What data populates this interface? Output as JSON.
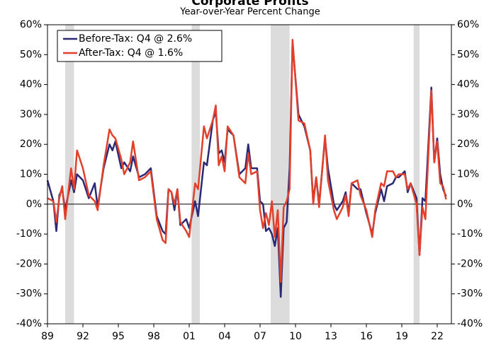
{
  "chart_data": {
    "type": "line",
    "title": "Corporate Profits",
    "subtitle": "Year-over-Year Percent Change",
    "x": [
      1989.0,
      1989.5,
      1989.75,
      1990.0,
      1990.25,
      1990.5,
      1991.0,
      1991.25,
      1991.5,
      1992.0,
      1992.5,
      1993.0,
      1993.25,
      1993.75,
      1994.25,
      1994.5,
      1994.75,
      1995.25,
      1995.5,
      1996.0,
      1996.25,
      1996.75,
      1997.25,
      1997.75,
      1998.25,
      1998.75,
      1999.0,
      1999.25,
      1999.5,
      1999.75,
      2000.0,
      2000.25,
      2000.75,
      2001.0,
      2001.5,
      2001.75,
      2002.25,
      2002.5,
      2003.0,
      2003.25,
      2003.5,
      2003.75,
      2004.0,
      2004.25,
      2004.75,
      2005.25,
      2005.75,
      2006.0,
      2006.25,
      2006.75,
      2007.0,
      2007.25,
      2007.5,
      2007.75,
      2008.0,
      2008.25,
      2008.5,
      2008.75,
      2009.0,
      2009.25,
      2009.5,
      2009.75,
      2010.25,
      2010.75,
      2011.25,
      2011.5,
      2011.75,
      2012.0,
      2012.5,
      2012.75,
      2013.25,
      2013.5,
      2014.0,
      2014.25,
      2014.5,
      2014.75,
      2015.25,
      2015.5,
      2016.0,
      2016.5,
      2016.75,
      2017.25,
      2017.5,
      2017.75,
      2018.25,
      2018.5,
      2018.75,
      2019.25,
      2019.5,
      2019.75,
      2020.25,
      2020.5,
      2020.75,
      2021.0,
      2021.5,
      2021.75,
      2022.0,
      2022.25,
      2022.5,
      2022.75
    ],
    "series": [
      {
        "name": "Before-Tax: Q4 @ 2.6%",
        "color": "#2b2876",
        "values": [
          8,
          1,
          -9,
          3,
          5,
          -2,
          8,
          4,
          10,
          8,
          2,
          7,
          -1,
          12,
          20,
          18,
          21,
          12,
          14,
          11,
          16,
          9,
          10,
          12,
          -4,
          -9,
          -10,
          5,
          4,
          -2,
          5,
          -7,
          -5,
          -8,
          1,
          -4,
          14,
          13,
          28,
          31,
          17,
          18,
          14,
          25,
          23,
          10,
          12,
          20,
          12,
          12,
          1,
          0,
          -9,
          -8,
          -10,
          -14,
          -8,
          -31,
          -8,
          -6,
          12,
          54,
          30,
          26,
          18,
          1,
          9,
          0,
          22,
          12,
          0,
          -2,
          1,
          4,
          -3,
          7,
          5,
          5,
          -3,
          -10,
          -3,
          5,
          1,
          6,
          7,
          9,
          9,
          11,
          4,
          7,
          2,
          -17,
          2,
          1,
          39,
          14,
          22,
          10,
          5,
          2.6
        ]
      },
      {
        "name": "After-Tax: Q4 @ 1.6%",
        "color": "#e2402b",
        "values": [
          2,
          1,
          -6,
          2,
          6,
          -5,
          12,
          5,
          18,
          12,
          3,
          1,
          -2,
          13,
          25,
          23,
          22,
          15,
          10,
          14,
          21,
          8,
          9,
          11,
          -5,
          -12,
          -13,
          5,
          4,
          0,
          5,
          -6,
          -9,
          -11,
          7,
          5,
          26,
          22,
          28,
          33,
          13,
          16,
          11,
          26,
          23,
          9,
          7,
          17,
          10,
          11,
          -2,
          -8,
          -3,
          -7,
          1,
          -11,
          -2,
          -26,
          -1,
          1,
          5,
          55,
          28,
          27,
          18,
          0,
          9,
          -1,
          23,
          8,
          -2,
          -5,
          -1,
          3,
          -4,
          7,
          8,
          3,
          -2,
          -11,
          -2,
          7,
          6,
          11,
          11,
          9,
          10,
          10,
          5,
          7,
          0,
          -17,
          -1,
          -5,
          38,
          14,
          21,
          7,
          6,
          1.6
        ]
      }
    ],
    "shaded_periods": [
      [
        1990.5,
        1991.25
      ],
      [
        2001.2,
        2001.9
      ],
      [
        2007.9,
        2009.5
      ],
      [
        2020.0,
        2020.5
      ]
    ],
    "xlim": [
      1989,
      2023.2
    ],
    "xticks": [
      {
        "value": 1989,
        "label": "89"
      },
      {
        "value": 1992,
        "label": "92"
      },
      {
        "value": 1995,
        "label": "95"
      },
      {
        "value": 1998,
        "label": "98"
      },
      {
        "value": 2001,
        "label": "01"
      },
      {
        "value": 2004,
        "label": "04"
      },
      {
        "value": 2007,
        "label": "07"
      },
      {
        "value": 2010,
        "label": "10"
      },
      {
        "value": 2013,
        "label": "13"
      },
      {
        "value": 2016,
        "label": "16"
      },
      {
        "value": 2019,
        "label": "19"
      },
      {
        "value": 2022,
        "label": "22"
      }
    ],
    "ylim": [
      -40,
      60
    ],
    "yticks": [
      {
        "value": -40,
        "label": "-40%"
      },
      {
        "value": -30,
        "label": "-30%"
      },
      {
        "value": -20,
        "label": "-20%"
      },
      {
        "value": -10,
        "label": "-10%"
      },
      {
        "value": 0,
        "label": "0%"
      },
      {
        "value": 10,
        "label": "10%"
      },
      {
        "value": 20,
        "label": "20%"
      },
      {
        "value": 30,
        "label": "30%"
      },
      {
        "value": 40,
        "label": "40%"
      },
      {
        "value": 50,
        "label": "50%"
      },
      {
        "value": 60,
        "label": "60%"
      }
    ],
    "y2lim": [
      -40,
      60
    ],
    "y2ticks": [
      {
        "value": -40,
        "label": "-40%"
      },
      {
        "value": -30,
        "label": "-30%"
      },
      {
        "value": -20,
        "label": "-20%"
      },
      {
        "value": -10,
        "label": "-10%"
      },
      {
        "value": 0,
        "label": "0%"
      },
      {
        "value": 10,
        "label": "10%"
      },
      {
        "value": 20,
        "label": "20%"
      },
      {
        "value": 30,
        "label": "30%"
      },
      {
        "value": 40,
        "label": "40%"
      },
      {
        "value": 50,
        "label": "50%"
      },
      {
        "value": 60,
        "label": "60%"
      }
    ],
    "legend": "upper left"
  }
}
